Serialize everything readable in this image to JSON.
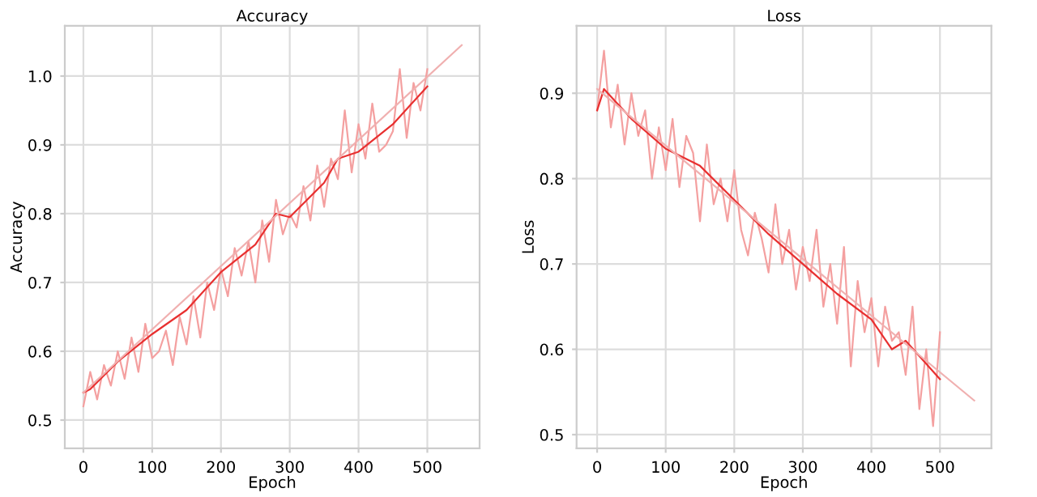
{
  "chart_data": [
    {
      "type": "line",
      "title": "Accuracy",
      "xlabel": "Epoch",
      "ylabel": "Accuracy",
      "xlim": [
        -27,
        576
      ],
      "ylim": [
        0.459,
        1.073
      ],
      "xticks": [
        0,
        100,
        200,
        300,
        400,
        500
      ],
      "yticks": [
        0.5,
        0.6,
        0.7,
        0.8,
        0.9,
        {
          "value": 1.0,
          "label": "1.0"
        }
      ],
      "grid": true,
      "series": [
        {
          "color": "#f4a0a0",
          "x": [
            0,
            10,
            20,
            30,
            40,
            50,
            60,
            70,
            80,
            90,
            100,
            110,
            120,
            130,
            140,
            150,
            160,
            170,
            180,
            190,
            200,
            210,
            220,
            230,
            240,
            250,
            260,
            270,
            280,
            290,
            300,
            310,
            320,
            330,
            340,
            350,
            360,
            370,
            380,
            390,
            400,
            410,
            420,
            430,
            440,
            450,
            460,
            470,
            480,
            490,
            500
          ],
          "values": [
            0.52,
            0.57,
            0.53,
            0.58,
            0.55,
            0.6,
            0.56,
            0.62,
            0.57,
            0.64,
            0.59,
            0.6,
            0.63,
            0.58,
            0.65,
            0.61,
            0.68,
            0.62,
            0.7,
            0.66,
            0.72,
            0.68,
            0.75,
            0.71,
            0.76,
            0.7,
            0.79,
            0.73,
            0.82,
            0.77,
            0.8,
            0.78,
            0.84,
            0.79,
            0.87,
            0.81,
            0.88,
            0.85,
            0.95,
            0.86,
            0.93,
            0.88,
            0.96,
            0.89,
            0.9,
            0.92,
            1.01,
            0.91,
            0.99,
            0.95,
            1.01
          ]
        },
        {
          "color": "#e83030",
          "x": [
            0,
            10,
            50,
            100,
            150,
            200,
            250,
            280,
            300,
            350,
            370,
            400,
            450,
            500
          ],
          "values": [
            0.54,
            0.545,
            0.585,
            0.625,
            0.66,
            0.715,
            0.755,
            0.8,
            0.795,
            0.845,
            0.88,
            0.89,
            0.93,
            0.985
          ]
        },
        {
          "color": "#f0b0b0",
          "x": [
            0,
            550
          ],
          "values": [
            0.54,
            1.045
          ]
        }
      ]
    },
    {
      "type": "line",
      "title": "Loss",
      "xlabel": "Epoch",
      "ylabel": "Loss",
      "xlim": [
        -30,
        575
      ],
      "ylim": [
        0.484,
        0.979
      ],
      "xticks": [
        0,
        100,
        200,
        300,
        400,
        500
      ],
      "yticks": [
        0.5,
        0.6,
        0.7,
        0.8,
        0.9
      ],
      "grid": true,
      "series": [
        {
          "color": "#f4a0a0",
          "x": [
            0,
            10,
            20,
            30,
            40,
            50,
            60,
            70,
            80,
            90,
            100,
            110,
            120,
            130,
            140,
            150,
            160,
            170,
            180,
            190,
            200,
            210,
            220,
            230,
            240,
            250,
            260,
            270,
            280,
            290,
            300,
            310,
            320,
            330,
            340,
            350,
            360,
            370,
            380,
            390,
            400,
            410,
            420,
            430,
            440,
            450,
            460,
            470,
            480,
            490,
            500
          ],
          "values": [
            0.88,
            0.95,
            0.86,
            0.91,
            0.84,
            0.9,
            0.85,
            0.88,
            0.8,
            0.86,
            0.81,
            0.87,
            0.79,
            0.85,
            0.83,
            0.75,
            0.84,
            0.77,
            0.8,
            0.75,
            0.81,
            0.74,
            0.71,
            0.76,
            0.73,
            0.69,
            0.77,
            0.7,
            0.74,
            0.67,
            0.72,
            0.68,
            0.74,
            0.65,
            0.7,
            0.63,
            0.72,
            0.58,
            0.68,
            0.62,
            0.66,
            0.58,
            0.65,
            0.61,
            0.62,
            0.57,
            0.65,
            0.53,
            0.6,
            0.51,
            0.62
          ]
        },
        {
          "color": "#e83030",
          "x": [
            0,
            10,
            50,
            100,
            150,
            200,
            250,
            300,
            350,
            400,
            430,
            450,
            500
          ],
          "values": [
            0.88,
            0.905,
            0.87,
            0.835,
            0.815,
            0.775,
            0.735,
            0.7,
            0.665,
            0.635,
            0.6,
            0.61,
            0.565
          ]
        },
        {
          "color": "#f0b0b0",
          "x": [
            0,
            550
          ],
          "values": [
            0.905,
            0.54
          ]
        }
      ]
    }
  ]
}
